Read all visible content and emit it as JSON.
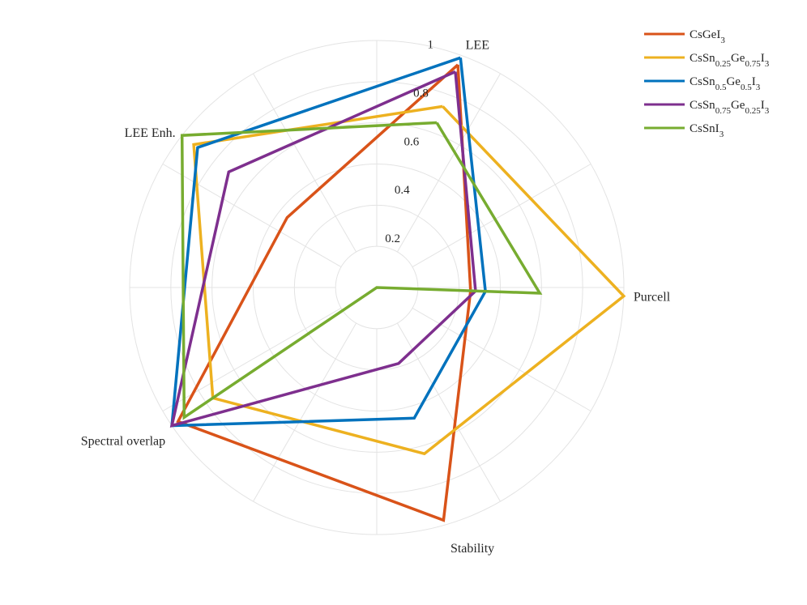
{
  "chart_data": {
    "type": "radar",
    "axes": [
      "LEE",
      "Purcell",
      "Stability",
      "Spectral overlap",
      "LEE Enh."
    ],
    "rlim": [
      0,
      1
    ],
    "r_ticks": [
      "0.2",
      "0.4",
      "0.6",
      "0.8",
      "1"
    ],
    "grid": true,
    "legend_position": "top-right",
    "series": [
      {
        "name": "CsGeI3",
        "name_base": "CsGeI",
        "name_sub": "3",
        "color": "#d95319",
        "values": [
          0.96,
          0.38,
          0.98,
          0.97,
          0.46
        ]
      },
      {
        "name": "CsSn0.25Ge0.75I3",
        "name_parts": [
          [
            "CsSn",
            "0.25"
          ],
          [
            "Ge",
            "0.75"
          ],
          [
            "I",
            "3"
          ]
        ],
        "color": "#edb120",
        "values": [
          0.78,
          1.0,
          0.7,
          0.8,
          0.94
        ]
      },
      {
        "name": "CsSn0.5Ge0.5I3",
        "name_parts": [
          [
            "CsSn",
            "0.5"
          ],
          [
            "Ge",
            "0.5"
          ],
          [
            "I",
            "3"
          ]
        ],
        "color": "#0072bd",
        "values": [
          0.99,
          0.44,
          0.55,
          1.0,
          0.92
        ]
      },
      {
        "name": "CsSn0.75Ge0.25I3",
        "name_parts": [
          [
            "CsSn",
            "0.75"
          ],
          [
            "Ge",
            "0.25"
          ],
          [
            "I",
            "3"
          ]
        ],
        "color": "#7e2f8e",
        "values": [
          0.93,
          0.4,
          0.32,
          1.0,
          0.76
        ]
      },
      {
        "name": "CsSnI3",
        "name_base": "CsSnI",
        "name_sub": "3",
        "color": "#77ac30",
        "values": [
          0.71,
          0.66,
          0.0,
          0.94,
          1.0
        ]
      }
    ]
  }
}
